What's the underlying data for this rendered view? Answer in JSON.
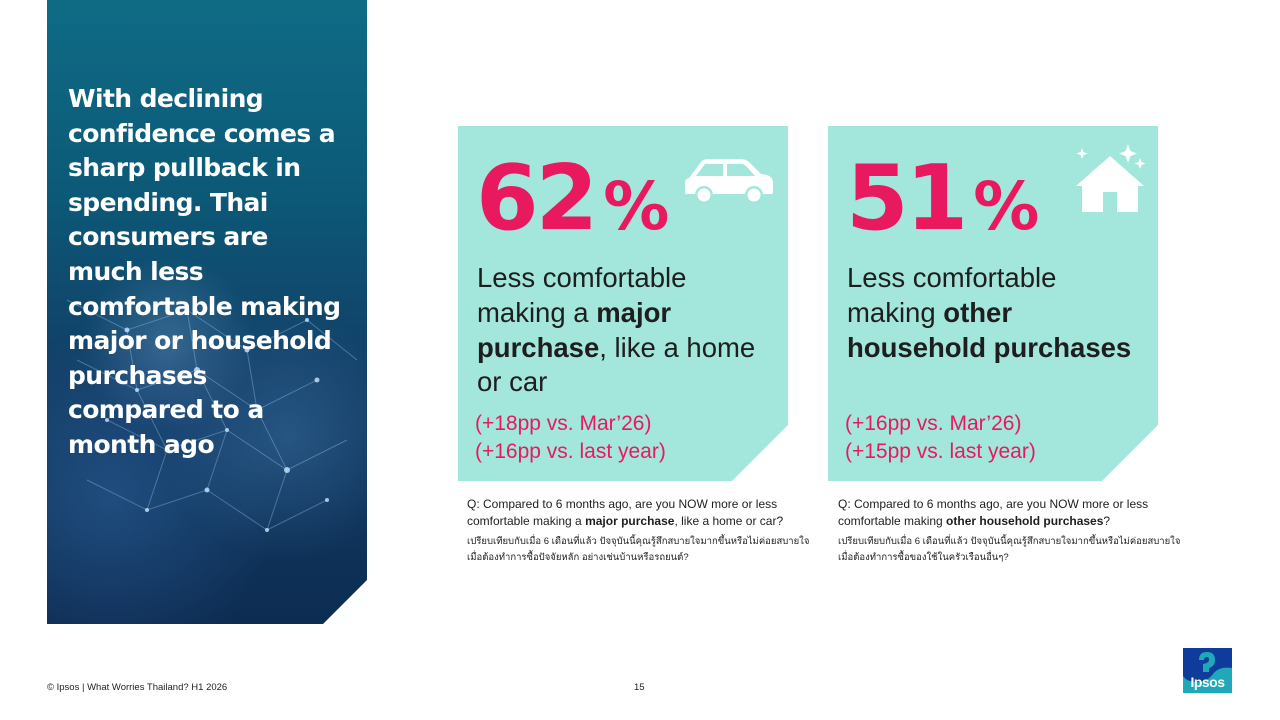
{
  "hero": {
    "text": "With declining confidence comes a sharp pullback in spending. Thai consumers are much less comfortable making major or household purchases compared to a month ago"
  },
  "cards": [
    {
      "value": "62",
      "unit": "%",
      "icon": "car-icon",
      "desc_pre": "Less comfortable making a ",
      "desc_bold": "major purchase",
      "desc_post": ", like a home or car",
      "change_1": "(+18pp vs. Mar’26)",
      "change_2": "(+16pp vs. last year)"
    },
    {
      "value": "51",
      "unit": "%",
      "icon": "house-sparkle-icon",
      "desc_pre": "Less comfortable making ",
      "desc_bold": "other household purchases",
      "desc_post": "",
      "change_1": "(+16pp vs. Mar’26)",
      "change_2": "(+15pp vs. last year)"
    }
  ],
  "questions": [
    {
      "pre": "Q: Compared to 6 months ago, are you NOW more or less comfortable making a ",
      "bold": "major purchase",
      "post": ", like a home or car?",
      "thai": "เปรียบเทียบกับเมื่อ 6 เดือนที่แล้ว ปัจจุบันนี้คุณรู้สึกสบายใจมากขึ้นหรือไม่ค่อยสบายใจเมื่อต้องทำการซื้อปัจจัยหลัก อย่างเช่นบ้านหรือรถยนต์?"
    },
    {
      "pre": "Q: Compared to 6 months ago, are you NOW more or less comfortable making ",
      "bold": "other household purchases",
      "post": "?",
      "thai": "เปรียบเทียบกับเมื่อ 6 เดือนที่แล้ว ปัจจุบันนี้คุณรู้สึกสบายใจมากขึ้นหรือไม่ค่อยสบายใจเมื่อต้องทำการซื้อของใช้ในครัวเรือนอื่นๆ?"
    }
  ],
  "footer": {
    "copyright": "© Ipsos | What Worries Thailand? H1 2026",
    "page": "15",
    "logo_text": "Ipsos"
  },
  "colors": {
    "accent": "#e8195e",
    "card_bg": "#a3e6dc",
    "logo_bg": "#0f3c9c"
  }
}
